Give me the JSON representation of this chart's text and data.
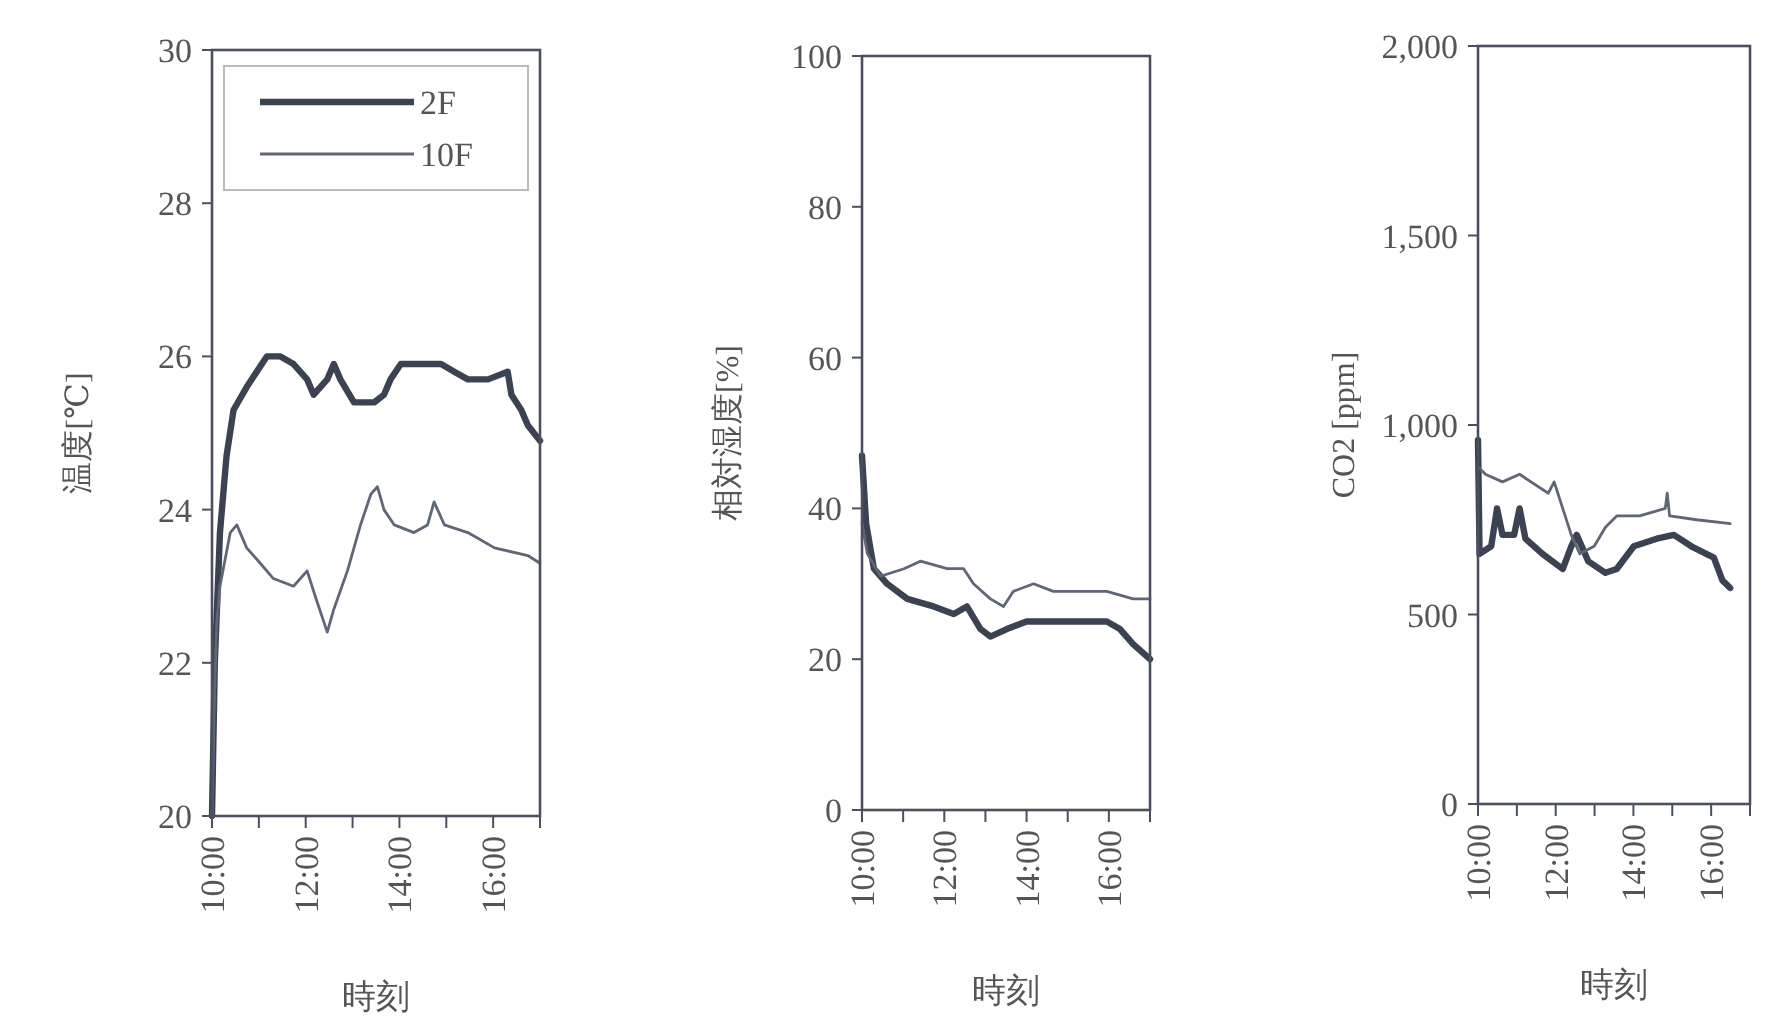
{
  "chart_data": [
    {
      "type": "line",
      "ylabel": "温度[℃]",
      "xlabel": "時刻",
      "xlim": [
        10,
        17
      ],
      "xticks": [
        {
          "value": 10,
          "label": "10:00"
        },
        {
          "value": 11,
          "label": null
        },
        {
          "value": 12,
          "label": "12:00"
        },
        {
          "value": 13,
          "label": null
        },
        {
          "value": 14,
          "label": "14:00"
        },
        {
          "value": 15,
          "label": null
        },
        {
          "value": 16,
          "label": "16:00"
        },
        {
          "value": 17,
          "label": null
        }
      ],
      "ylim": [
        20,
        30
      ],
      "yticks": [
        20,
        22,
        24,
        26,
        28,
        30
      ],
      "legend": "top right",
      "series": [
        {
          "name": "2F",
          "color": "#3b4252",
          "x": [
            10.0,
            10.06,
            10.17,
            10.31,
            10.46,
            10.74,
            11.17,
            11.46,
            11.74,
            12.03,
            12.17,
            12.46,
            12.6,
            12.74,
            13.03,
            13.46,
            13.67,
            13.81,
            14.03,
            14.46,
            14.89,
            15.17,
            15.46,
            15.89,
            16.31,
            16.39,
            16.6,
            16.74,
            17.0
          ],
          "values": [
            20.0,
            22.0,
            23.7,
            24.7,
            25.3,
            25.6,
            26.0,
            26.0,
            25.9,
            25.7,
            25.5,
            25.7,
            25.9,
            25.7,
            25.4,
            25.4,
            25.5,
            25.7,
            25.9,
            25.9,
            25.9,
            25.8,
            25.7,
            25.7,
            25.8,
            25.5,
            25.3,
            25.1,
            24.9
          ]
        },
        {
          "name": "10F",
          "color": "#5f6675",
          "x": [
            10.0,
            10.05,
            10.1,
            10.17,
            10.39,
            10.53,
            10.74,
            11.03,
            11.31,
            11.74,
            12.03,
            12.24,
            12.46,
            12.6,
            12.89,
            13.17,
            13.39,
            13.53,
            13.67,
            13.89,
            14.31,
            14.6,
            14.74,
            14.96,
            15.46,
            16.03,
            16.74,
            17.0
          ],
          "values": [
            20.0,
            21.5,
            22.5,
            23.0,
            23.7,
            23.8,
            23.5,
            23.3,
            23.1,
            23.0,
            23.2,
            22.8,
            22.4,
            22.7,
            23.2,
            23.8,
            24.2,
            24.3,
            24.0,
            23.8,
            23.7,
            23.8,
            24.1,
            23.8,
            23.7,
            23.5,
            23.4,
            23.3
          ]
        }
      ]
    },
    {
      "type": "line",
      "ylabel": "相対湿度[%]",
      "xlabel": "時刻",
      "xlim": [
        10,
        17
      ],
      "xticks": [
        {
          "value": 10,
          "label": "10:00"
        },
        {
          "value": 11,
          "label": null
        },
        {
          "value": 12,
          "label": "12:00"
        },
        {
          "value": 13,
          "label": null
        },
        {
          "value": 14,
          "label": "14:00"
        },
        {
          "value": 15,
          "label": null
        },
        {
          "value": 16,
          "label": "16:00"
        },
        {
          "value": 17,
          "label": null
        }
      ],
      "ylim": [
        0,
        100
      ],
      "yticks": [
        0,
        20,
        40,
        60,
        80,
        100
      ],
      "series": [
        {
          "color": "#3b4252",
          "x": [
            10.0,
            10.1,
            10.29,
            10.61,
            11.1,
            11.74,
            12.23,
            12.55,
            12.88,
            13.12,
            13.52,
            14.0,
            14.65,
            15.3,
            15.95,
            16.27,
            16.59,
            17.0
          ],
          "values": [
            47,
            38,
            32,
            30,
            28,
            27,
            26,
            27,
            24,
            23,
            24,
            25,
            25,
            25,
            25,
            24,
            22,
            20
          ]
        },
        {
          "color": "#5f6675",
          "x": [
            10.0,
            10.13,
            10.45,
            11.02,
            11.42,
            12.07,
            12.47,
            12.71,
            13.12,
            13.44,
            13.68,
            14.17,
            14.65,
            14.98,
            15.95,
            16.59,
            17.0
          ],
          "values": [
            38,
            34,
            31,
            32,
            33,
            32,
            32,
            30,
            28,
            27,
            29,
            30,
            29,
            29,
            29,
            28,
            28
          ]
        }
      ]
    },
    {
      "type": "line",
      "ylabel": "CO2 [ppm]",
      "xlabel": "時刻",
      "xlim": [
        10,
        17
      ],
      "xticks": [
        {
          "value": 10,
          "label": "10:00"
        },
        {
          "value": 11,
          "label": null
        },
        {
          "value": 12,
          "label": "12:00"
        },
        {
          "value": 13,
          "label": null
        },
        {
          "value": 14,
          "label": "14:00"
        },
        {
          "value": 15,
          "label": null
        },
        {
          "value": 16,
          "label": "16:00"
        },
        {
          "value": 17,
          "label": null
        }
      ],
      "ylim": [
        0,
        2000
      ],
      "yticks": [
        0,
        500,
        {
          "value": 1000,
          "label": "1,000"
        },
        {
          "value": 1500,
          "label": "1,500"
        },
        {
          "value": 2000,
          "label": "2,000"
        }
      ],
      "series": [
        {
          "color": "#3b4252",
          "x": [
            10.0,
            10.04,
            10.34,
            10.49,
            10.63,
            10.93,
            11.07,
            11.22,
            11.66,
            12.18,
            12.4,
            12.54,
            12.84,
            13.28,
            13.57,
            14.01,
            14.6,
            15.04,
            15.49,
            16.07,
            16.29,
            16.49
          ],
          "values": [
            960,
            660,
            680,
            780,
            710,
            710,
            780,
            700,
            660,
            620,
            680,
            710,
            640,
            610,
            620,
            680,
            700,
            710,
            680,
            650,
            590,
            570
          ]
        },
        {
          "color": "#5f6675",
          "x": [
            10.0,
            10.19,
            10.63,
            11.07,
            11.51,
            11.81,
            11.96,
            12.18,
            12.4,
            12.62,
            12.99,
            13.28,
            13.57,
            14.16,
            14.82,
            14.87,
            14.93,
            15.63,
            16.49
          ],
          "values": [
            890,
            870,
            850,
            870,
            840,
            820,
            850,
            780,
            710,
            660,
            680,
            730,
            760,
            760,
            780,
            820,
            760,
            750,
            740
          ]
        }
      ]
    }
  ]
}
